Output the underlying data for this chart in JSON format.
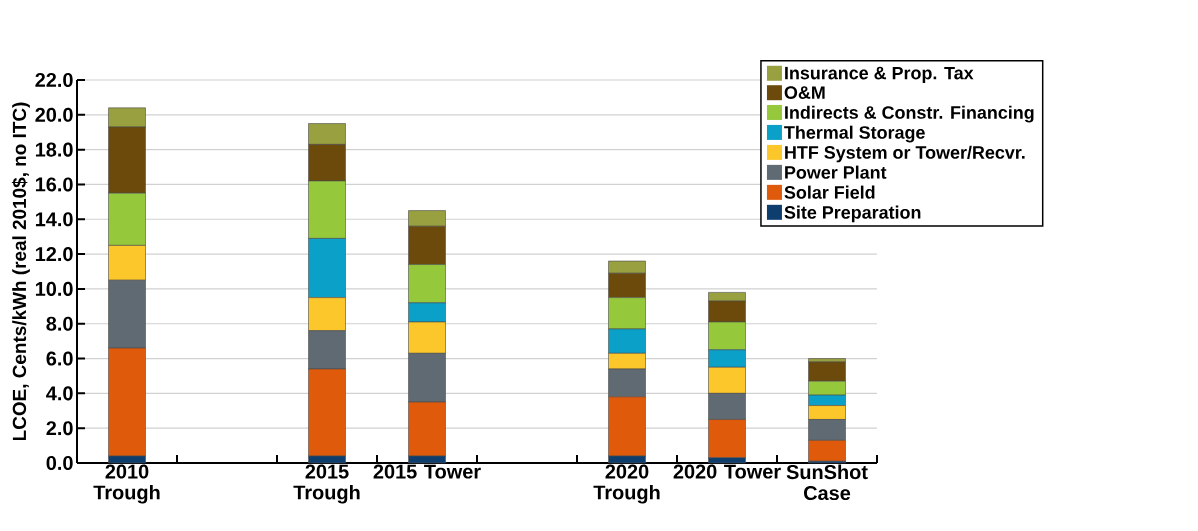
{
  "chart_data": {
    "type": "bar",
    "stacked": true,
    "ylabel": "LCOE, Cents/kWh (real 2010$, no ITC)",
    "categories": [
      "2010 Trough",
      null,
      "2015 Trough",
      "2015 Tower",
      null,
      "2020 Trough",
      "2020 Tower",
      "SunShot Case"
    ],
    "series": [
      {
        "name": "Site Preparation",
        "color": "#0d3e6e",
        "values": [
          0.4,
          null,
          0.4,
          0.4,
          null,
          0.4,
          0.3,
          0.1
        ]
      },
      {
        "name": "Solar Field",
        "color": "#e05a0c",
        "values": [
          6.2,
          null,
          5.0,
          3.1,
          null,
          3.4,
          2.2,
          1.2
        ]
      },
      {
        "name": "Power Plant",
        "color": "#5f6a72",
        "values": [
          3.9,
          null,
          2.2,
          2.8,
          null,
          1.6,
          1.5,
          1.2
        ]
      },
      {
        "name": "HTF System or Tower/Recvr.",
        "color": "#fcc72a",
        "values": [
          2.0,
          null,
          1.9,
          1.8,
          null,
          0.9,
          1.5,
          0.8
        ]
      },
      {
        "name": "Thermal Storage",
        "color": "#0aa0c8",
        "values": [
          0,
          null,
          3.4,
          1.1,
          null,
          1.4,
          1.0,
          0.6
        ]
      },
      {
        "name": "Indirects & Constr. Financing",
        "color": "#96c83c",
        "values": [
          3.0,
          null,
          3.3,
          2.2,
          null,
          1.8,
          1.6,
          0.8
        ]
      },
      {
        "name": "O&M",
        "color": "#6b4a0c",
        "values": [
          3.8,
          null,
          2.1,
          2.2,
          null,
          1.4,
          1.2,
          1.1
        ]
      },
      {
        "name": "Insurance & Prop. Tax",
        "color": "#99a040",
        "values": [
          1.1,
          null,
          1.2,
          0.9,
          null,
          0.7,
          0.5,
          0.2
        ]
      }
    ],
    "ylim": [
      0,
      22
    ],
    "yticks": [
      {
        "value": 0,
        "label": "0.0"
      },
      {
        "value": 2,
        "label": "2.0"
      },
      {
        "value": 4,
        "label": "4.0"
      },
      {
        "value": 6,
        "label": "6.0"
      },
      {
        "value": 8,
        "label": "8.0"
      },
      {
        "value": 10,
        "label": "10.0"
      },
      {
        "value": 12,
        "label": "12.0"
      },
      {
        "value": 14,
        "label": "14.0"
      },
      {
        "value": 16,
        "label": "16.0"
      },
      {
        "value": 18,
        "label": "18.0"
      },
      {
        "value": 20,
        "label": "20.0"
      },
      {
        "value": 22,
        "label": "22.0"
      }
    ],
    "grid": "y",
    "legend": "top right"
  }
}
